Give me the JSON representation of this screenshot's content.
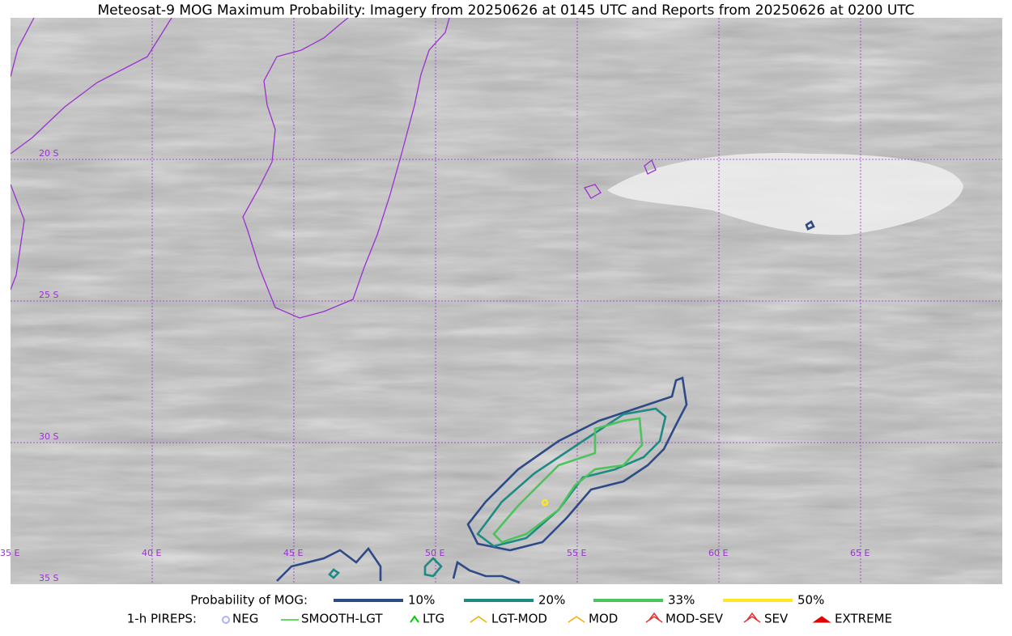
{
  "title": "Meteosat-9 MOG Maximum Probability: Imagery from 20250626 at 0145 UTC and Reports from 20250626 at 0200 UTC",
  "map": {
    "lon_labels": [
      "35 E",
      "40 E",
      "45 E",
      "50 E",
      "55 E",
      "60 E",
      "65 E"
    ],
    "lat_labels": [
      "20 S",
      "25 S",
      "30 S",
      "35 S"
    ]
  },
  "legend": {
    "mog_title": "Probability of MOG:",
    "mog_items": [
      {
        "label": "10%",
        "color": "#2e4a87"
      },
      {
        "label": "20%",
        "color": "#1f8a84"
      },
      {
        "label": "33%",
        "color": "#4cc35c"
      },
      {
        "label": "50%",
        "color": "#fde725"
      }
    ],
    "pirep_title": "1-h PIREPS:",
    "pirep_items": [
      {
        "label": "NEG",
        "color": "#b0b0ff"
      },
      {
        "label": "SMOOTH-LGT",
        "color": "#33cc33"
      },
      {
        "label": "LTG",
        "color": "#00cc00"
      },
      {
        "label": "LGT-MOD",
        "color": "#f0b000"
      },
      {
        "label": "MOD",
        "color": "#f0b000"
      },
      {
        "label": "MOD-SEV",
        "color": "#e03030"
      },
      {
        "label": "SEV",
        "color": "#e03030"
      },
      {
        "label": "EXTREME",
        "color": "#e00000"
      }
    ]
  }
}
